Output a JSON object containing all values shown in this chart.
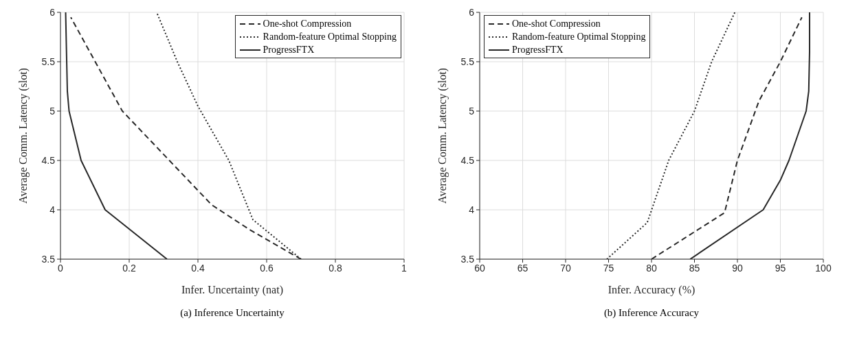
{
  "chart_data": [
    {
      "type": "line",
      "xlabel": "Infer. Uncertainty (nat)",
      "ylabel": "Average Comm. Latency (slot)",
      "xlim": [
        0,
        1
      ],
      "xticks": [
        0,
        0.2,
        0.4,
        0.6,
        0.8,
        1
      ],
      "ylim": [
        3.5,
        6
      ],
      "yticks": [
        3.5,
        4,
        4.5,
        5,
        5.5,
        6
      ],
      "grid": true,
      "legend": "top right",
      "annotations": [
        "(a) Inference Uncertainty"
      ],
      "series": [
        {
          "name": "One-shot Compression",
          "color": "#262626",
          "line_style": "dashed",
          "x": [
            0.7,
            0.55,
            0.44,
            0.18,
            0.03
          ],
          "values": [
            3.5,
            3.8,
            4.05,
            5.0,
            5.95
          ]
        },
        {
          "name": "Random-feature Optimal Stopping",
          "color": "#262626",
          "line_style": "dotted",
          "x": [
            0.7,
            0.56,
            0.49,
            0.4,
            0.34,
            0.28
          ],
          "values": [
            3.5,
            3.9,
            4.5,
            5.05,
            5.5,
            6.0
          ]
        },
        {
          "name": "ProgressFTX",
          "color": "#262626",
          "line_style": "solid",
          "x": [
            0.31,
            0.13,
            0.06,
            0.025,
            0.02,
            0.015
          ],
          "values": [
            3.5,
            4.0,
            4.5,
            5.0,
            5.2,
            6.0
          ]
        }
      ]
    },
    {
      "type": "line",
      "xlabel": "Infer. Accuracy (%)",
      "ylabel": "Average Comm. Latency (slot)",
      "xlim": [
        60,
        100
      ],
      "xticks": [
        60,
        65,
        70,
        75,
        80,
        85,
        90,
        95,
        100
      ],
      "ylim": [
        3.5,
        6
      ],
      "yticks": [
        3.5,
        4,
        4.5,
        5,
        5.5,
        6
      ],
      "grid": true,
      "legend": "top left",
      "annotations": [
        "(b) Inference Accuracy"
      ],
      "series": [
        {
          "name": "One-shot Compression",
          "color": "#262626",
          "line_style": "dashed",
          "x": [
            80,
            88.5,
            90,
            92.5,
            95,
            97.5
          ],
          "values": [
            3.5,
            3.97,
            4.5,
            5.1,
            5.5,
            5.95
          ]
        },
        {
          "name": "Random-feature Optimal Stopping",
          "color": "#262626",
          "line_style": "dotted",
          "x": [
            74.8,
            79.5,
            82,
            85,
            87,
            89.7
          ],
          "values": [
            3.5,
            3.87,
            4.5,
            5.0,
            5.5,
            6.0
          ]
        },
        {
          "name": "ProgressFTX",
          "color": "#262626",
          "line_style": "solid",
          "x": [
            84.5,
            93,
            95,
            96,
            98,
            98.3,
            98.4,
            98.4
          ],
          "values": [
            3.5,
            4.0,
            4.3,
            4.5,
            5.0,
            5.2,
            5.6,
            6.0
          ]
        }
      ]
    }
  ]
}
